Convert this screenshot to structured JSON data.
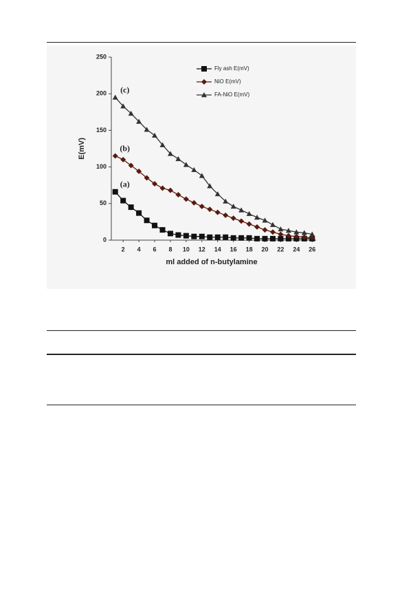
{
  "chart_data": {
    "type": "line",
    "x_label": "ml added of n-butylamine",
    "y_label": "E(mV)",
    "x": [
      1,
      2,
      3,
      4,
      5,
      6,
      7,
      8,
      9,
      10,
      11,
      12,
      13,
      14,
      15,
      16,
      17,
      18,
      19,
      20,
      21,
      22,
      23,
      24,
      25,
      26
    ],
    "xlim": [
      0.5,
      26.5
    ],
    "xticks": [
      2,
      4,
      6,
      8,
      10,
      12,
      14,
      16,
      18,
      20,
      22,
      24,
      26
    ],
    "ylim": [
      0,
      250
    ],
    "yticks": [
      0,
      50,
      100,
      150,
      200,
      250
    ],
    "grid": false,
    "legend": "top-right",
    "annotations": [
      "(a)",
      "(b)",
      "(c)"
    ],
    "series": [
      {
        "name": "Fly ash E(mV)",
        "color": "#111111",
        "marker": "square",
        "values": [
          66,
          54,
          45,
          37,
          27,
          20,
          14,
          9,
          7,
          6,
          5,
          5,
          4,
          4,
          4,
          3,
          3,
          3,
          2,
          2,
          2,
          2,
          2,
          2,
          2,
          2
        ]
      },
      {
        "name": "NiO E(mV)",
        "color": "#5a1a0e",
        "marker": "diamond",
        "values": [
          115,
          110,
          102,
          94,
          85,
          77,
          71,
          68,
          62,
          56,
          51,
          46,
          42,
          38,
          34,
          30,
          26,
          22,
          18,
          14,
          11,
          8,
          6,
          5,
          4,
          3
        ]
      },
      {
        "name": "FA-NiO E(mV)",
        "color": "#333333",
        "marker": "triangle",
        "values": [
          195,
          183,
          173,
          162,
          151,
          143,
          130,
          118,
          111,
          103,
          96,
          88,
          74,
          63,
          53,
          46,
          41,
          36,
          31,
          27,
          21,
          15,
          13,
          11,
          10,
          8
        ]
      }
    ]
  }
}
